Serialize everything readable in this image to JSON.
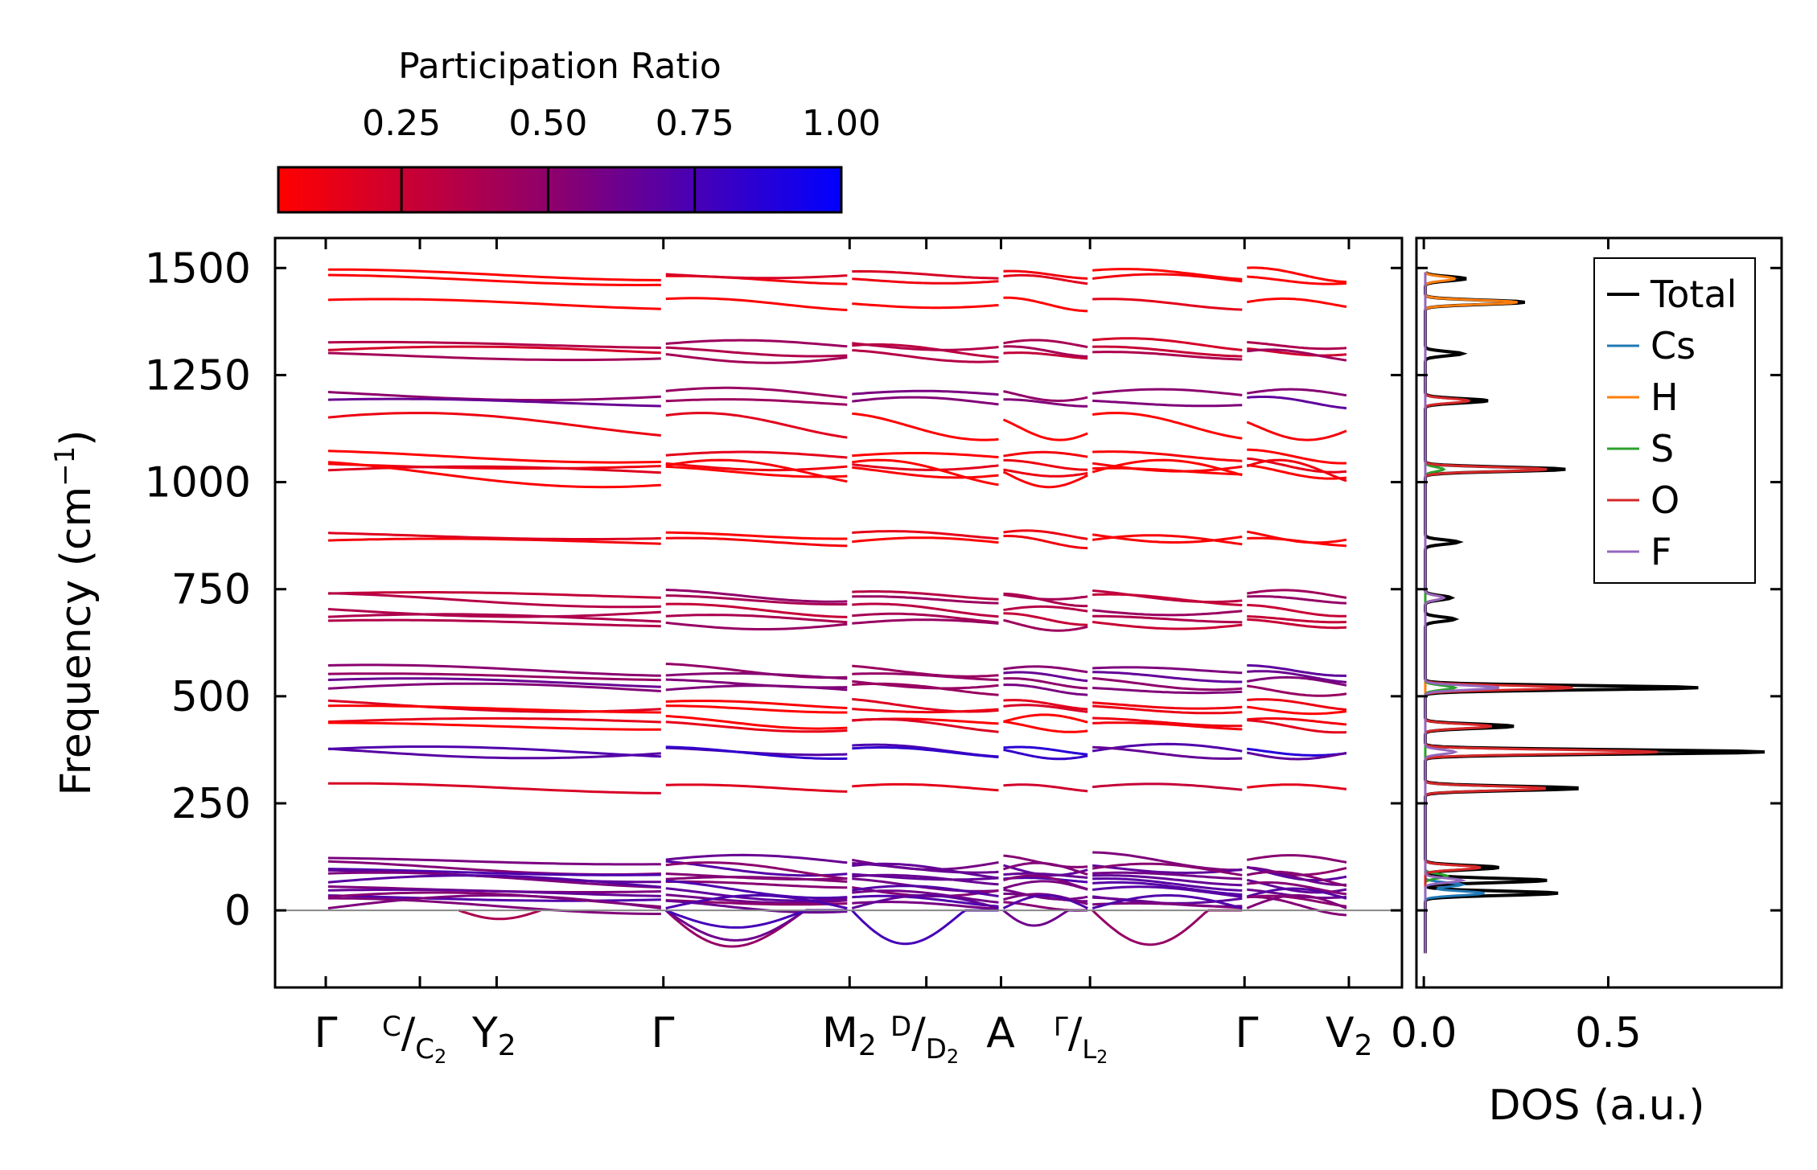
{
  "chart_data": [
    {
      "type": "line",
      "subtype": "phonon-band-structure",
      "ylabel": "Frequency (cm",
      "ylabel_sup": "−1",
      "ylabel_close": ")",
      "ylim": [
        -180,
        1570
      ],
      "yticks": [
        0,
        250,
        500,
        750,
        1000,
        1250,
        1500
      ],
      "ytick_labels": [
        "0",
        "250",
        "500",
        "750",
        "1000",
        "1250",
        "1500"
      ],
      "kpath": [
        {
          "label": "Γ",
          "pos": 0.0
        },
        {
          "label": "C/C2",
          "pos": 0.092
        },
        {
          "label": "Y2",
          "pos": 0.167
        },
        {
          "label": "Γ",
          "pos": 0.33
        },
        {
          "label": "M2",
          "pos": 0.512
        },
        {
          "label": "D/D2",
          "pos": 0.587
        },
        {
          "label": "A",
          "pos": 0.66
        },
        {
          "label": "Γ/L2",
          "pos": 0.747
        },
        {
          "label": "Γ",
          "pos": 0.898
        },
        {
          "label": "V2",
          "pos": 1.0
        }
      ],
      "kpath_labels": {
        "g1": "Γ",
        "c_sup": "C",
        "c_slash": "/",
        "c_sub_main": "C",
        "c_sub": "2",
        "y2_main": "Y",
        "y2_sub": "2",
        "g2": "Γ",
        "m2_main": "M",
        "m2_sub": "2",
        "d_sup": "D",
        "d_slash": "/",
        "d_sub_main": "D",
        "d_sub": "2",
        "a": "A",
        "gl_sup": "Γ",
        "gl_slash": "/",
        "gl_sub_main": "L",
        "gl_sub": "2",
        "g3": "Γ",
        "v2_main": "V",
        "v2_sub": "2"
      },
      "segment_breaks": [
        0.33,
        0.512,
        0.66,
        0.747,
        0.898
      ],
      "band_groups_cm1": [
        {
          "centers": [
            1472,
            1484,
            1415
          ],
          "pr": 0.05
        },
        {
          "centers": [
            1305,
            1295,
            1320
          ],
          "pr": 0.3
        },
        {
          "centers": [
            1205,
            1185
          ],
          "pr": 0.55
        },
        {
          "centers": [
            1060,
            1040,
            1025,
            1020,
            1130
          ],
          "pr": 0.02
        },
        {
          "centers": [
            860,
            875
          ],
          "pr": 0.05
        },
        {
          "centers": [
            735,
            725,
            700,
            680,
            670
          ],
          "pr": 0.35
        },
        {
          "centers": [
            560,
            545,
            530,
            515
          ],
          "pr": 0.55
        },
        {
          "centers": [
            480,
            470,
            440,
            430
          ],
          "pr": 0.05
        },
        {
          "centers": [
            372,
            368
          ],
          "pr": 0.75
        },
        {
          "centers": [
            285
          ],
          "pr": 0.2
        },
        {
          "centers": [
            115,
            100,
            90,
            80,
            70,
            60,
            50,
            40,
            30,
            20,
            10,
            0
          ],
          "pr": 0.6
        }
      ],
      "imaginary_modes_cm1_min": -100
    },
    {
      "type": "line",
      "subtype": "density-of-states",
      "xlabel": "DOS (a.u.)",
      "xlim": [
        -0.02,
        0.97
      ],
      "xticks": [
        0.0,
        0.5
      ],
      "xtick_labels": [
        "0.0",
        "0.5"
      ],
      "series": [
        {
          "name": "Total",
          "color": "#000000",
          "peaks": [
            {
              "f": 1475,
              "v": 0.11
            },
            {
              "f": 1420,
              "v": 0.27
            },
            {
              "f": 1300,
              "v": 0.1
            },
            {
              "f": 1190,
              "v": 0.17
            },
            {
              "f": 1030,
              "v": 0.38
            },
            {
              "f": 860,
              "v": 0.09
            },
            {
              "f": 730,
              "v": 0.07
            },
            {
              "f": 680,
              "v": 0.08
            },
            {
              "f": 520,
              "v": 0.74
            },
            {
              "f": 430,
              "v": 0.24
            },
            {
              "f": 370,
              "v": 0.92
            },
            {
              "f": 285,
              "v": 0.42
            },
            {
              "f": 100,
              "v": 0.2
            },
            {
              "f": 70,
              "v": 0.33
            },
            {
              "f": 40,
              "v": 0.36
            }
          ]
        },
        {
          "name": "Cs",
          "color": "#1f77b4",
          "peaks": [
            {
              "f": 40,
              "v": 0.16
            },
            {
              "f": 60,
              "v": 0.1
            }
          ]
        },
        {
          "name": "H",
          "color": "#ff7f0e",
          "peaks": [
            {
              "f": 1420,
              "v": 0.25
            },
            {
              "f": 1475,
              "v": 0.08
            }
          ]
        },
        {
          "name": "S",
          "color": "#2ca02c",
          "peaks": [
            {
              "f": 1030,
              "v": 0.05
            },
            {
              "f": 520,
              "v": 0.08
            },
            {
              "f": 80,
              "v": 0.06
            }
          ]
        },
        {
          "name": "O",
          "color": "#d62728",
          "peaks": [
            {
              "f": 1190,
              "v": 0.12
            },
            {
              "f": 1030,
              "v": 0.33
            },
            {
              "f": 730,
              "v": 0.05
            },
            {
              "f": 520,
              "v": 0.4
            },
            {
              "f": 430,
              "v": 0.18
            },
            {
              "f": 370,
              "v": 0.63
            },
            {
              "f": 285,
              "v": 0.33
            },
            {
              "f": 100,
              "v": 0.15
            }
          ]
        },
        {
          "name": "F",
          "color": "#9467bd",
          "peaks": [
            {
              "f": 730,
              "v": 0.05
            },
            {
              "f": 520,
              "v": 0.2
            },
            {
              "f": 370,
              "v": 0.08
            },
            {
              "f": 70,
              "v": 0.1
            }
          ]
        }
      ],
      "legend_position": "top-right"
    }
  ],
  "colorbar": {
    "title": "Participation Ratio",
    "range": [
      0.04,
      1.0
    ],
    "ticks": [
      0.25,
      0.5,
      0.75,
      1.0
    ],
    "tick_labels": [
      "0.25",
      "0.50",
      "0.75",
      "1.00"
    ],
    "color_low": "#ff0000",
    "color_mid": "#800080",
    "color_high": "#0000ff"
  }
}
